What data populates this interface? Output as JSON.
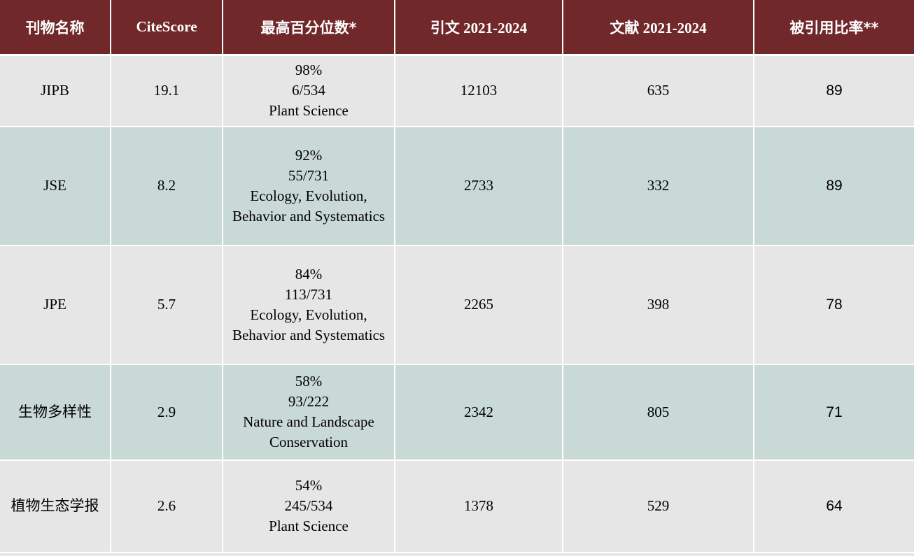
{
  "table": {
    "headers": [
      "刊物名称",
      "CiteScore",
      "最高百分位数*",
      "引文 2021-2024",
      "文献 2021-2024",
      "被引用比率**"
    ],
    "rows": [
      {
        "name": "JIPB",
        "citescore": "19.1",
        "percentile": "98%",
        "rank": "6/534",
        "category": "Plant Science",
        "category_line2": "",
        "citations": "12103",
        "documents": "635",
        "cited_ratio": "89"
      },
      {
        "name": "JSE",
        "citescore": "8.2",
        "percentile": "92%",
        "rank": "55/731",
        "category": "Ecology, Evolution,",
        "category_line2": "Behavior and Systematics",
        "citations": "2733",
        "documents": "332",
        "cited_ratio": "89"
      },
      {
        "name": "JPE",
        "citescore": "5.7",
        "percentile": "84%",
        "rank": "113/731",
        "category": "Ecology, Evolution,",
        "category_line2": "Behavior and Systematics",
        "citations": "2265",
        "documents": "398",
        "cited_ratio": "78"
      },
      {
        "name": "生物多样性",
        "citescore": "2.9",
        "percentile": "58%",
        "rank": "93/222",
        "category": "Nature and Landscape",
        "category_line2": "Conservation",
        "citations": "2342",
        "documents": "805",
        "cited_ratio": "71"
      },
      {
        "name": "植物生态学报",
        "citescore": "2.6",
        "percentile": "54%",
        "rank": "245/534",
        "category": "Plant Science",
        "category_line2": "",
        "citations": "1378",
        "documents": "529",
        "cited_ratio": "64"
      }
    ]
  },
  "colors": {
    "header_bg": "#71282b",
    "row_gray": "#e6e6e6",
    "row_teal": "#c9d9d6"
  }
}
